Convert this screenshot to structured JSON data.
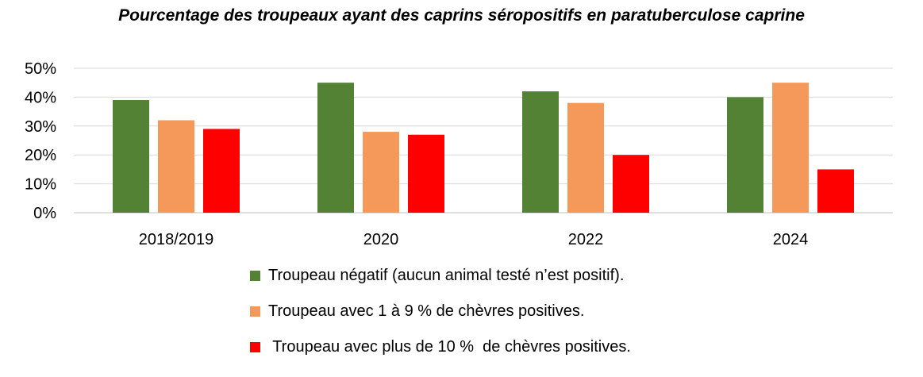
{
  "chart_data": {
    "type": "bar",
    "title": "Pourcentage des troupeaux ayant des caprins séropositifs en paratuberculose caprine",
    "xlabel": "",
    "ylabel": "",
    "categories": [
      "2018/2019",
      "2020",
      "2022",
      "2024"
    ],
    "yticks": [
      "0%",
      "10%",
      "20%",
      "30%",
      "40%",
      "50%"
    ],
    "ylim": [
      0,
      50
    ],
    "grid": true,
    "legend_position": "bottom",
    "series": [
      {
        "name": "Troupeau négatif (aucun animal testé n’est positif).",
        "color": "#548235",
        "values": [
          39,
          45,
          42,
          40
        ]
      },
      {
        "name": "Troupeau avec 1 à 9 % de chèvres positives.",
        "color": "#F4995A",
        "values": [
          32,
          28,
          38,
          45
        ]
      },
      {
        "name": " Troupeau avec plus de 10 %  de chèvres positives.",
        "color": "#FF0000",
        "values": [
          29,
          27,
          20,
          15
        ]
      }
    ]
  }
}
